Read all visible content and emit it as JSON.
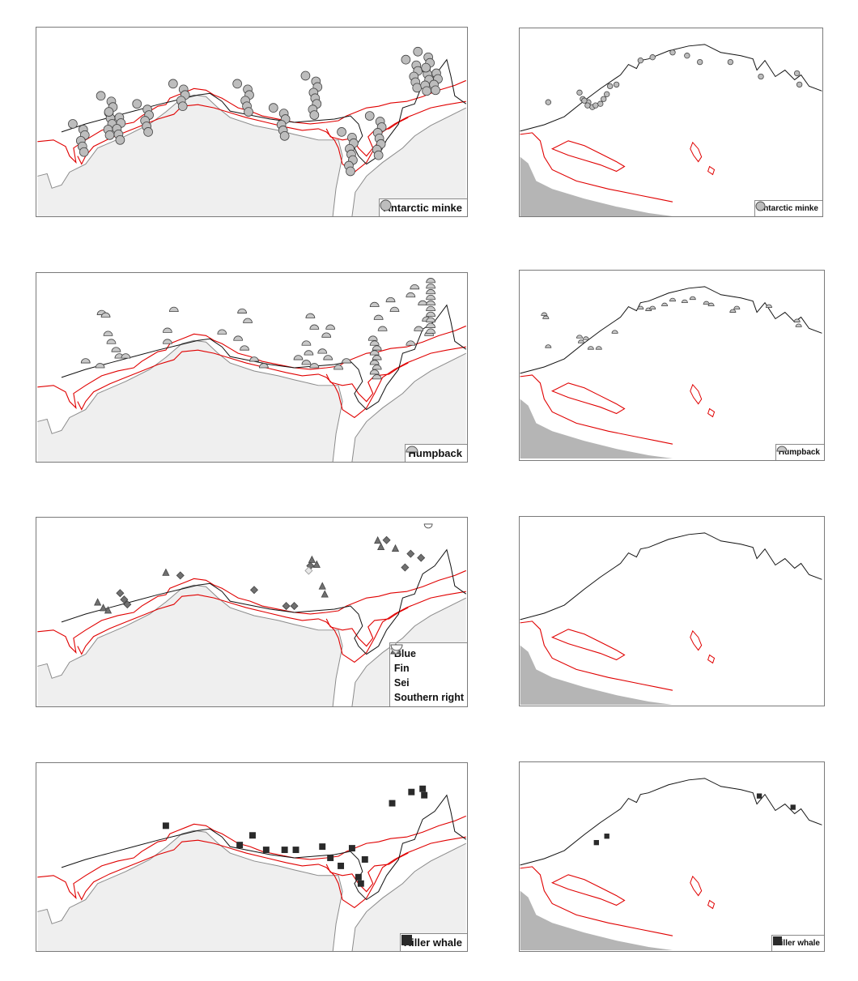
{
  "colors": {
    "land": "#efefef",
    "land_dark": "#b5b5b5",
    "coast": "#8a8a8a",
    "isobath": "#e00000",
    "track": "#111111",
    "minke": "#bdbdbd",
    "humpback": "#c8c8c8",
    "blue": "#707070",
    "fin": "#707070",
    "sei": "#e8e8e8",
    "right": "#ffffff",
    "killer": "#2a2a2a"
  },
  "legends": {
    "minke": "Antarctic minke",
    "humpback": "Humpback",
    "multi": [
      "Blue",
      "Fin",
      "Sei",
      "Southern right"
    ],
    "killer": "Killer whale"
  },
  "icons": {
    "minke": "circle-icon",
    "humpback": "half-circle-icon",
    "blue": "diamond-icon",
    "fin": "triangle-icon",
    "sei": "diamond-outline-icon",
    "right": "half-circle-outline-icon",
    "killer": "square-icon"
  }
}
